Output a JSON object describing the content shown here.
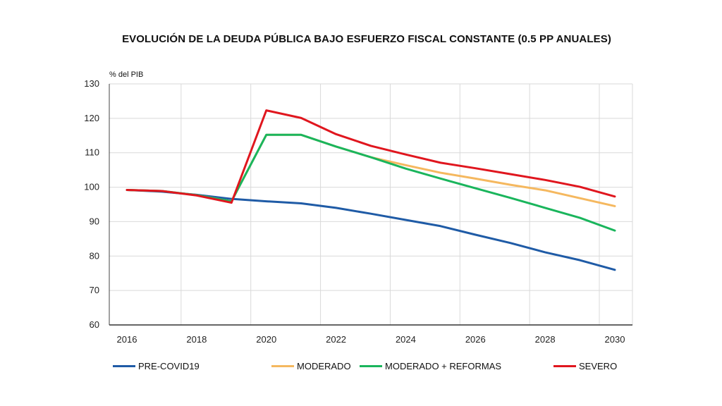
{
  "chart_data": {
    "type": "line",
    "title": "EVOLUCIÓN DE LA DEUDA PÚBLICA BAJO ESFUERZO FISCAL CONSTANTE (0.5 PP ANUALES)",
    "ylabel": "% del PIB",
    "xlabel": "",
    "x": [
      2016,
      2017,
      2018,
      2019,
      2020,
      2021,
      2022,
      2023,
      2024,
      2025,
      2026,
      2027,
      2028,
      2029,
      2030
    ],
    "xticks": [
      "2016",
      "2018",
      "2020",
      "2022",
      "2024",
      "2026",
      "2028",
      "2030"
    ],
    "yticks": [
      "60",
      "70",
      "80",
      "90",
      "100",
      "110",
      "120",
      "130"
    ],
    "ylim": [
      60,
      130
    ],
    "grid": true,
    "legend_position": "bottom",
    "series": [
      {
        "name": "PRE-COVID19",
        "color": "#1f5ba6",
        "values": [
          99.2,
          98.7,
          97.8,
          96.6,
          95.9,
          95.3,
          94.0,
          92.3,
          90.5,
          88.7,
          86.2,
          83.8,
          81.1,
          78.8,
          76.0
        ]
      },
      {
        "name": "MODERADO",
        "color": "#f5b85f",
        "values": [
          99.2,
          98.9,
          97.7,
          95.9,
          115.2,
          115.2,
          111.8,
          108.7,
          106.4,
          104.2,
          102.5,
          100.7,
          99.1,
          96.8,
          94.5
        ]
      },
      {
        "name": "MODERADO + REFORMAS",
        "color": "#1ab55c",
        "values": [
          99.2,
          98.9,
          97.7,
          95.9,
          115.2,
          115.2,
          111.8,
          108.7,
          105.4,
          102.5,
          99.7,
          96.9,
          94.0,
          91.1,
          87.4
        ]
      },
      {
        "name": "SEVERO",
        "color": "#e0161e",
        "values": [
          99.2,
          98.9,
          97.6,
          95.5,
          122.3,
          120.1,
          115.4,
          112.0,
          109.5,
          107.1,
          105.5,
          103.8,
          102.1,
          100.1,
          97.3
        ]
      }
    ]
  }
}
